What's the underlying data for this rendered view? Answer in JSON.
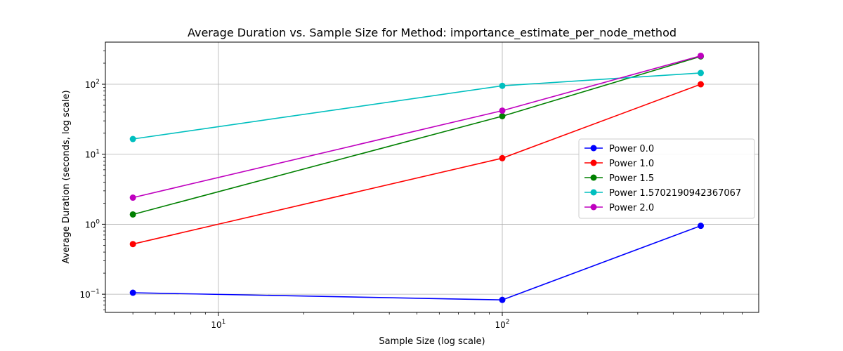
{
  "chart_data": {
    "type": "line",
    "title": "Average Duration vs. Sample Size for Method: importance_estimate_per_node_method",
    "xlabel": "Sample Size (log scale)",
    "ylabel": "Average Duration (seconds, log scale)",
    "xscale": "log",
    "yscale": "log",
    "xlim": [
      4,
      800
    ],
    "ylim": [
      0.055,
      400
    ],
    "grid": true,
    "legend_position": "center-right",
    "x_ticks": [
      {
        "value": 10,
        "base": "10",
        "exp": "1"
      },
      {
        "value": 100,
        "base": "10",
        "exp": "2"
      }
    ],
    "y_ticks": [
      {
        "value": 0.1,
        "base": "10",
        "exp": "−1"
      },
      {
        "value": 1,
        "base": "10",
        "exp": "0"
      },
      {
        "value": 10,
        "base": "10",
        "exp": "1"
      },
      {
        "value": 100,
        "base": "10",
        "exp": "2"
      }
    ],
    "x": [
      5,
      100,
      500
    ],
    "series": [
      {
        "name": "Power 0.0",
        "color": "#0000ff",
        "values": [
          0.105,
          0.083,
          0.95
        ]
      },
      {
        "name": "Power 1.0",
        "color": "#ff0000",
        "values": [
          0.52,
          8.8,
          100
        ]
      },
      {
        "name": "Power 1.5",
        "color": "#008000",
        "values": [
          1.38,
          35,
          250
        ]
      },
      {
        "name": "Power 1.5702190942367067",
        "color": "#00bfbf",
        "values": [
          16.5,
          95,
          145
        ]
      },
      {
        "name": "Power 2.0",
        "color": "#bf00bf",
        "values": [
          2.4,
          42,
          255
        ]
      }
    ]
  }
}
